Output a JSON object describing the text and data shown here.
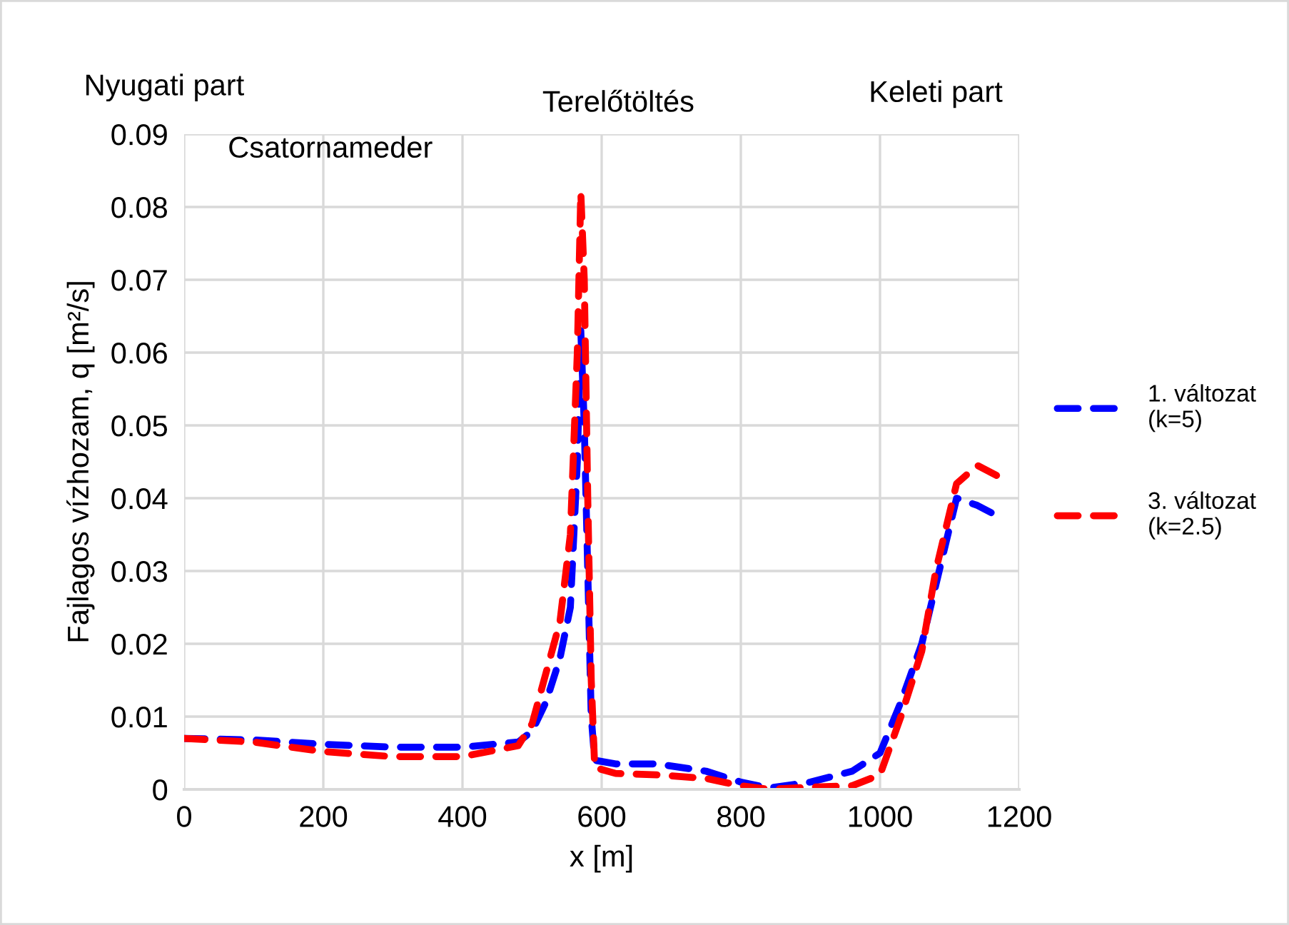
{
  "chart_data": {
    "type": "line",
    "xlabel": "x [m]",
    "ylabel": "Fajlagos vízhozam, q [m²/s]",
    "xlim": [
      0,
      1200
    ],
    "xticks": [
      0,
      200,
      400,
      600,
      800,
      1000,
      1200
    ],
    "ylim": [
      0,
      0.09
    ],
    "yticks": [
      0,
      0.01,
      0.02,
      0.03,
      0.04,
      0.05,
      0.06,
      0.07,
      0.08,
      0.09
    ],
    "grid": true,
    "legend": "right",
    "line_style": "dashed",
    "marker": "none",
    "annotations": [
      "Nyugati part",
      "Csatornameder",
      "Terelőtöltés",
      "Keleti part"
    ],
    "series": [
      {
        "name": "1. változat\n(k=5)",
        "color": "#0000ff",
        "x": [
          0,
          100,
          200,
          300,
          400,
          480,
          500,
          520,
          540,
          555,
          565,
          570,
          575,
          580,
          585,
          590,
          620,
          680,
          750,
          800,
          840,
          900,
          960,
          1000,
          1030,
          1060,
          1080,
          1100,
          1110,
          1140,
          1170
        ],
        "values": [
          0.007,
          0.0068,
          0.0062,
          0.0058,
          0.0058,
          0.0065,
          0.008,
          0.012,
          0.018,
          0.025,
          0.045,
          0.063,
          0.05,
          0.03,
          0.01,
          0.004,
          0.0035,
          0.0035,
          0.0025,
          0.001,
          0.0002,
          0.001,
          0.0025,
          0.005,
          0.012,
          0.02,
          0.028,
          0.036,
          0.04,
          0.039,
          0.0375
        ]
      },
      {
        "name": "3. változat\n(k=2.5)",
        "color": "#ff0000",
        "x": [
          0,
          100,
          200,
          300,
          400,
          480,
          500,
          520,
          540,
          555,
          565,
          570,
          575,
          580,
          585,
          590,
          620,
          680,
          750,
          800,
          840,
          900,
          960,
          1000,
          1030,
          1060,
          1080,
          1100,
          1110,
          1140,
          1170
        ],
        "values": [
          0.007,
          0.0065,
          0.0052,
          0.0045,
          0.0045,
          0.006,
          0.009,
          0.016,
          0.023,
          0.035,
          0.06,
          0.082,
          0.07,
          0.04,
          0.015,
          0.003,
          0.0022,
          0.002,
          0.0015,
          0.0005,
          0.0,
          0.0003,
          0.0005,
          0.002,
          0.01,
          0.019,
          0.03,
          0.038,
          0.042,
          0.0445,
          0.043
        ]
      }
    ]
  }
}
